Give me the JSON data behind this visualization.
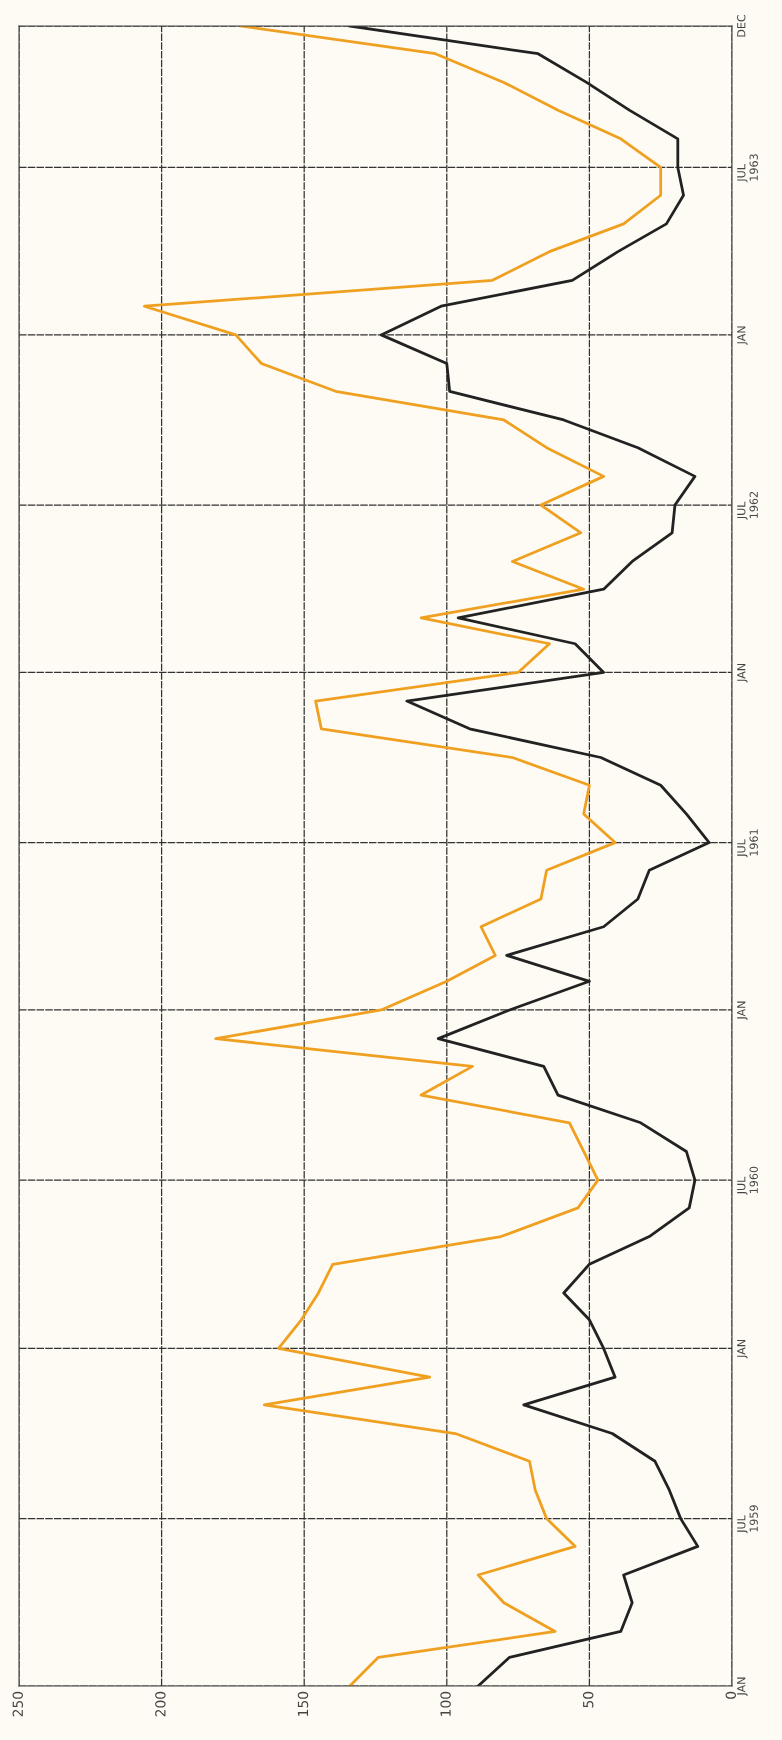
{
  "chart_data": {
    "type": "line",
    "x": [
      "1959-01",
      "1959-02",
      "1959-03",
      "1959-04",
      "1959-05",
      "1959-06",
      "1959-07",
      "1959-08",
      "1959-09",
      "1959-10",
      "1959-11",
      "1959-12",
      "1960-01",
      "1960-02",
      "1960-03",
      "1960-04",
      "1960-05",
      "1960-06",
      "1960-07",
      "1960-08",
      "1960-09",
      "1960-10",
      "1960-11",
      "1960-12",
      "1961-01",
      "1961-02",
      "1961-03",
      "1961-04",
      "1961-05",
      "1961-06",
      "1961-07",
      "1961-08",
      "1961-09",
      "1961-10",
      "1961-11",
      "1961-12",
      "1962-01",
      "1962-02",
      "1962-03",
      "1962-04",
      "1962-05",
      "1962-06",
      "1962-07",
      "1962-08",
      "1962-09",
      "1962-10",
      "1962-11",
      "1962-12",
      "1963-01",
      "1963-02",
      "1963-03",
      "1963-04",
      "1963-05",
      "1963-06",
      "1963-07",
      "1963-08",
      "1963-09",
      "1963-10",
      "1963-11",
      "1963-12"
    ],
    "series": [
      {
        "color": "#222222",
        "values": [
          89,
          78,
          39,
          35,
          38,
          12,
          18,
          22,
          27,
          42,
          73,
          41,
          45,
          50,
          59,
          50,
          29,
          15,
          13,
          16,
          32,
          61,
          66,
          103,
          78,
          50,
          79,
          45,
          33,
          29,
          8,
          16,
          25,
          46,
          92,
          114,
          45,
          55,
          96,
          45,
          35,
          21,
          20,
          13,
          33,
          59,
          99,
          100,
          123,
          102,
          56,
          40,
          23,
          17,
          19,
          19,
          36,
          51,
          68,
          134
        ]
      },
      {
        "color": "#f0a020",
        "values": [
          134,
          124,
          62,
          80,
          89,
          55,
          65,
          69,
          71,
          97,
          164,
          106,
          159,
          151,
          145,
          140,
          81,
          54,
          47,
          52,
          57,
          109,
          91,
          181,
          123,
          100,
          83,
          88,
          67,
          65,
          41,
          52,
          50,
          77,
          144,
          146,
          75,
          64,
          109,
          52,
          77,
          53,
          67,
          45,
          65,
          80,
          139,
          165,
          174,
          206,
          84,
          64,
          38,
          25,
          25,
          39,
          61,
          80,
          104,
          172
        ]
      }
    ],
    "orientation": "horizontal",
    "xlim": [
      250,
      0
    ],
    "xticks": [
      0,
      50,
      100,
      150,
      200,
      250
    ],
    "ylim": [
      "1959-01",
      "1963-12"
    ],
    "yticks": [
      {
        "value": "1959-01",
        "label": "JAN"
      },
      {
        "value": "1959-07",
        "label": "JUL\n1959"
      },
      {
        "value": "1960-01",
        "label": "JAN"
      },
      {
        "value": "1960-07",
        "label": "JUL\n1960"
      },
      {
        "value": "1961-01",
        "label": "JAN"
      },
      {
        "value": "1961-07",
        "label": "JUL\n1961"
      },
      {
        "value": "1962-01",
        "label": "JAN"
      },
      {
        "value": "1962-07",
        "label": "JUL\n1962"
      },
      {
        "value": "1963-01",
        "label": "JAN"
      },
      {
        "value": "1963-07",
        "label": "JUL\n1963"
      },
      {
        "value": "1963-12",
        "label": "DEC"
      }
    ],
    "grid": true
  }
}
